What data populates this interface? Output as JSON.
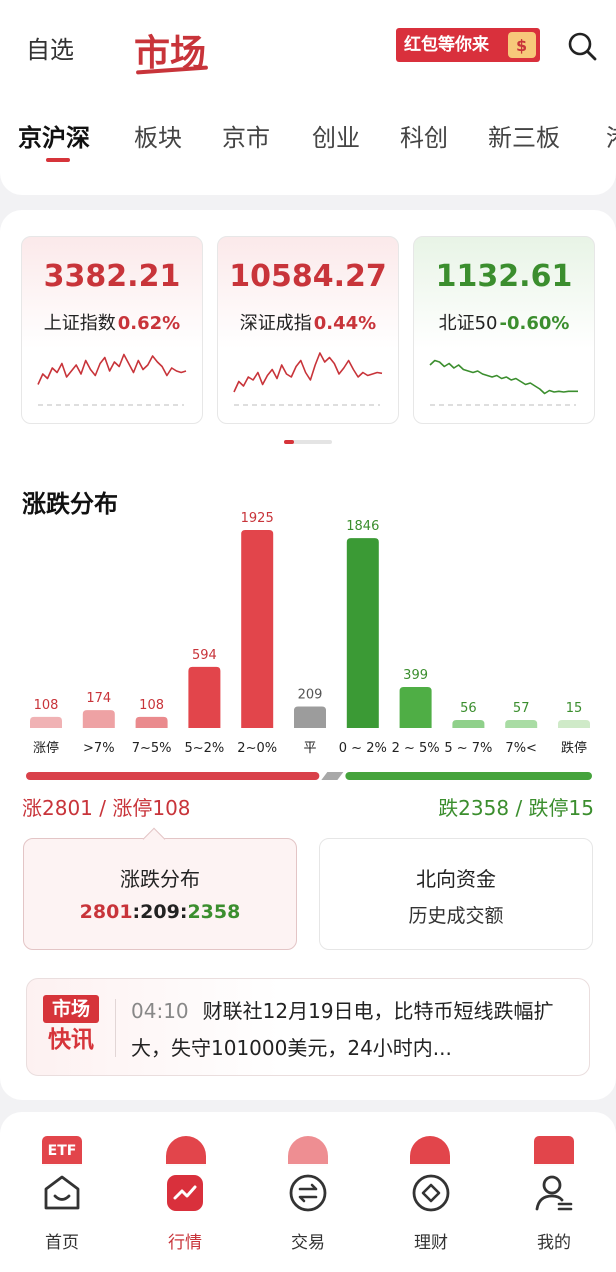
{
  "header": {
    "favorites": "自选",
    "title": "市场",
    "banner": "红包等你来"
  },
  "tabs": [
    "京沪深",
    "板块",
    "京市",
    "创业",
    "科创",
    "新三板",
    "港"
  ],
  "indices": [
    {
      "value": "3382.21",
      "name": "上证指数",
      "change": "0.62%",
      "trend": "up",
      "spark": [
        30,
        44,
        38,
        52,
        46,
        58,
        40,
        48,
        56,
        44,
        62,
        50,
        42,
        58,
        66,
        48,
        60,
        54,
        70,
        58,
        46,
        62,
        50,
        56,
        68,
        60,
        54,
        42,
        52,
        48,
        46,
        48
      ]
    },
    {
      "value": "10584.27",
      "name": "深证成指",
      "change": "0.44%",
      "trend": "up",
      "spark": [
        20,
        34,
        28,
        40,
        36,
        46,
        30,
        42,
        50,
        38,
        56,
        44,
        40,
        54,
        62,
        46,
        36,
        56,
        72,
        60,
        66,
        58,
        44,
        52,
        62,
        50,
        40,
        46,
        42,
        44,
        46,
        45
      ]
    },
    {
      "value": "1132.61",
      "name": "北证50",
      "change": "-0.60%",
      "trend": "down",
      "spark": [
        56,
        62,
        60,
        54,
        58,
        52,
        56,
        50,
        48,
        46,
        48,
        44,
        42,
        40,
        42,
        38,
        40,
        36,
        38,
        34,
        30,
        32,
        28,
        24,
        18,
        22,
        20,
        21,
        20,
        21,
        21,
        21
      ]
    }
  ],
  "distribution_title": "涨跌分布",
  "chart_data": {
    "type": "bar",
    "title": "涨跌分布",
    "categories": [
      "涨停",
      ">7%",
      "7~5%",
      "5~2%",
      "2~0%",
      "平",
      "0 ~ 2%",
      "2 ~ 5%",
      "5 ~ 7%",
      "7%<",
      "跌停"
    ],
    "values": [
      108,
      174,
      108,
      594,
      1925,
      209,
      1846,
      399,
      56,
      57,
      15
    ],
    "colors": [
      "#f0b2b4",
      "#eea2a4",
      "#ea8a8d",
      "#e2454b",
      "#e2454b",
      "#9c9c9c",
      "#3b9a35",
      "#4fae45",
      "#8fd08a",
      "#a9dca4",
      "#cfeac8"
    ]
  },
  "summary": {
    "rise": "涨2801 / 涨停108",
    "fall": "跌2358 / 跌停15",
    "rise_color": "#d9414a",
    "fall_color": "#45a33c",
    "rise_count": 2801,
    "flat_count": 209,
    "fall_count": 2358
  },
  "cards": {
    "dist": {
      "title": "涨跌分布",
      "rise": "2801",
      "flat": "209",
      "fall": "2358",
      "sep": ":"
    },
    "north": {
      "title": "北向资金",
      "sub": "历史成交额"
    }
  },
  "news": {
    "logo_top": "市场",
    "logo_bottom": "快讯",
    "time": "04:10",
    "text": "财联社12月19日电，比特币短线跌幅扩大，失守101000美元，24小时内..."
  },
  "quick": {
    "etf": "ETF"
  },
  "tabbar": [
    "首页",
    "行情",
    "交易",
    "理财",
    "我的"
  ]
}
